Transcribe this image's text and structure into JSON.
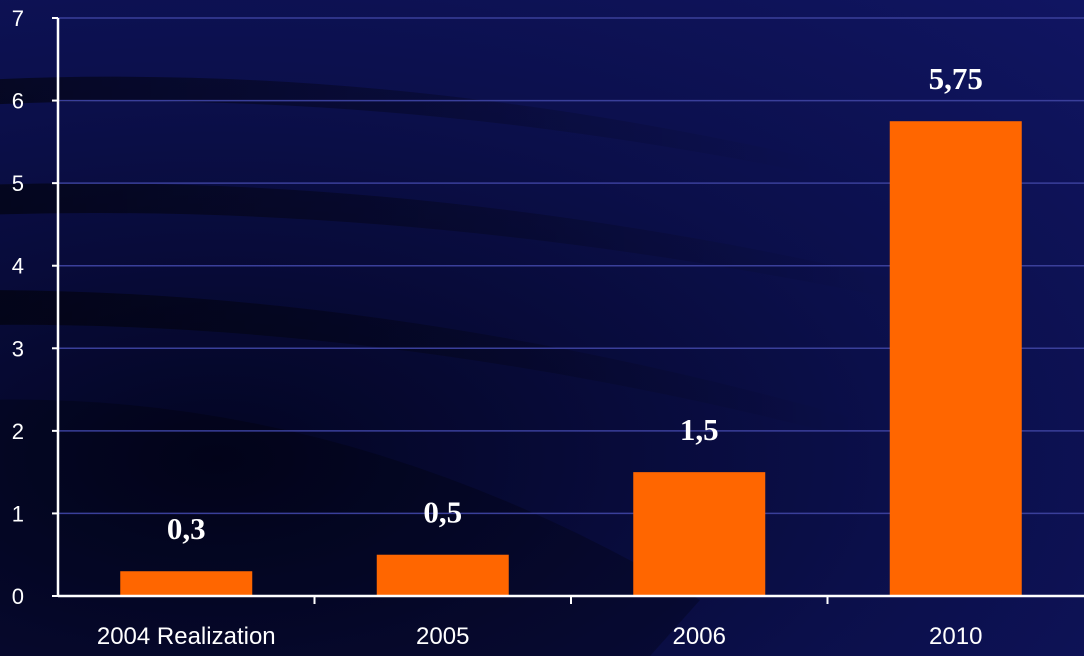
{
  "chart_data": {
    "type": "bar",
    "categories": [
      "2004 Realization",
      "2005",
      "2006",
      "2010"
    ],
    "values": [
      0.3,
      0.5,
      1.5,
      5.75
    ],
    "data_labels": [
      "0,3",
      "0,5",
      "1,5",
      "5,75"
    ],
    "title": "",
    "xlabel": "",
    "ylabel": "",
    "ylim": [
      0,
      7
    ],
    "yticks": [
      "0",
      "1",
      "2",
      "3",
      "4",
      "5",
      "6",
      "7"
    ],
    "grid": true,
    "legend": "none",
    "colors": {
      "bar": "#ff6600",
      "gridline": "#3a3f9a",
      "axis": "#ffffff",
      "text": "#ffffff",
      "background": "#0b0f4a"
    }
  }
}
